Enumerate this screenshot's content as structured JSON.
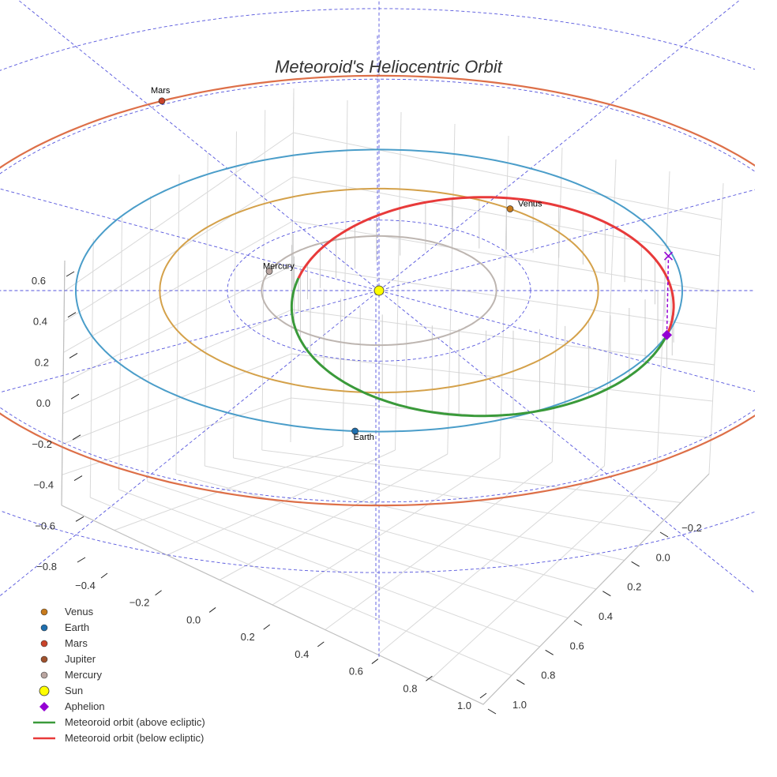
{
  "chart_data": {
    "type": "3d-line",
    "title": "Meteoroid's Heliocentric Orbit",
    "axes": {
      "x_ticks": [
        "−0.4",
        "−0.2",
        "0.0",
        "0.2",
        "0.4",
        "0.6",
        "0.8",
        "1.0"
      ],
      "y_ticks": [
        "−0.2",
        "0.0",
        "0.2",
        "0.4",
        "0.6",
        "0.8",
        "1.0"
      ],
      "z_ticks": [
        "0.6",
        "0.4",
        "0.2",
        "0.0",
        "−0.2",
        "−0.4",
        "−0.6",
        "−0.8"
      ],
      "x_range": [
        -0.45,
        1.05
      ],
      "y_range": [
        -0.3,
        1.05
      ],
      "z_range": [
        -0.85,
        0.65
      ],
      "grid": true
    },
    "orbits": [
      {
        "name": "Mercury",
        "semi_major_au": 0.387,
        "color": "#bdb5b0"
      },
      {
        "name": "Venus",
        "semi_major_au": 0.723,
        "color": "#d4a14a"
      },
      {
        "name": "Earth",
        "semi_major_au": 1.0,
        "color": "#4a9dc9"
      },
      {
        "name": "Mars",
        "semi_major_au": 1.524,
        "color": "#dd6f48"
      }
    ],
    "planets": [
      {
        "name": "Venus",
        "color": "#c77a1c",
        "show_label": true
      },
      {
        "name": "Earth",
        "color": "#1f6fae",
        "show_label": true
      },
      {
        "name": "Mars",
        "color": "#c9432a",
        "show_label": true
      },
      {
        "name": "Jupiter",
        "color": "#a0522d",
        "show_label": false
      },
      {
        "name": "Mercury",
        "color": "#b9a5a0",
        "show_label": true
      }
    ],
    "sun": {
      "name": "Sun",
      "color": "#ffff00"
    },
    "aphelion": {
      "name": "Aphelion",
      "color": "#9400d3",
      "marker": "diamond"
    },
    "meteoroid_orbit": {
      "perihelion_au": 0.28,
      "aphelion_au": 1.0,
      "above_color": "#3a9a3a",
      "below_color": "#e83a3a",
      "above_label": "Meteoroid orbit (above ecliptic)",
      "below_label": "Meteoroid orbit (below ecliptic)"
    },
    "reference_grid": {
      "color": "#5555dd",
      "style": "dashed"
    },
    "legend": [
      {
        "label": "Venus",
        "type": "dot",
        "color": "#c77a1c"
      },
      {
        "label": "Earth",
        "type": "dot",
        "color": "#1f6fae"
      },
      {
        "label": "Mars",
        "type": "dot",
        "color": "#c9432a"
      },
      {
        "label": "Jupiter",
        "type": "dot",
        "color": "#a0522d"
      },
      {
        "label": "Mercury",
        "type": "dot",
        "color": "#b9a5a0"
      },
      {
        "label": "Sun",
        "type": "sun",
        "color": "#ffff00"
      },
      {
        "label": "Aphelion",
        "type": "diamond",
        "color": "#9400d3"
      },
      {
        "label": "Meteoroid orbit (above ecliptic)",
        "type": "line",
        "color": "#3a9a3a"
      },
      {
        "label": "Meteoroid orbit (below ecliptic)",
        "type": "line",
        "color": "#e83a3a"
      }
    ]
  }
}
